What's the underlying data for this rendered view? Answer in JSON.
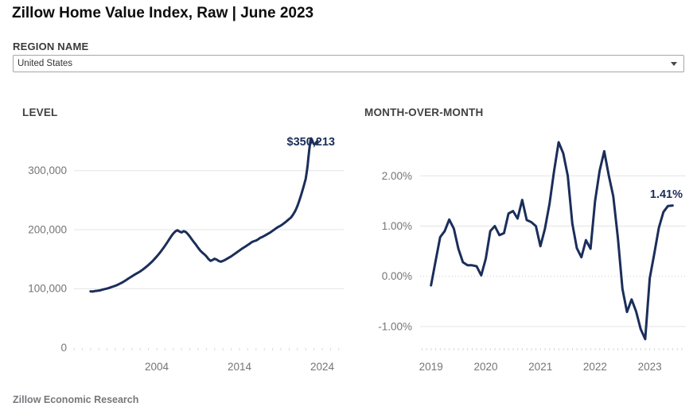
{
  "header": {
    "title": "Zillow Home Value Index, Raw | June 2023"
  },
  "region_filter": {
    "label": "REGION NAME",
    "selected": "United States"
  },
  "footer": {
    "source": "Zillow Economic Research"
  },
  "colors": {
    "line": "#1b2e5a",
    "annotation": "#1b2e5a",
    "grid": "#e4e4e4",
    "axis_text": "#757575",
    "heading_text": "#414141"
  },
  "chart_data": [
    {
      "id": "level",
      "type": "line",
      "title": "LEVEL",
      "annotation": "$350,213",
      "xlabel": "",
      "ylabel": "",
      "legend": "none",
      "grid": "horizontal",
      "xlim": [
        1994.0,
        2026.6
      ],
      "ylim": [
        0,
        379000
      ],
      "tick_step": 1,
      "xticks": [
        {
          "v": 2004,
          "label": "2004"
        },
        {
          "v": 2014,
          "label": "2014"
        },
        {
          "v": 2024,
          "label": "2024"
        }
      ],
      "yticks": [
        {
          "v": 0,
          "label": "0",
          "grid": false
        },
        {
          "v": 100000,
          "label": "100,000",
          "grid": true
        },
        {
          "v": 200000,
          "label": "200,000",
          "grid": true
        },
        {
          "v": 300000,
          "label": "300,000",
          "grid": true
        }
      ],
      "points": [
        [
          1996.0,
          95500
        ],
        [
          1996.25,
          95000
        ],
        [
          1996.5,
          95800
        ],
        [
          1996.75,
          96200
        ],
        [
          1997.0,
          96800
        ],
        [
          1997.25,
          97500
        ],
        [
          1997.5,
          98500
        ],
        [
          1997.75,
          99300
        ],
        [
          1998.0,
          100200
        ],
        [
          1998.25,
          101300
        ],
        [
          1998.5,
          102600
        ],
        [
          1998.75,
          103700
        ],
        [
          1999.0,
          104900
        ],
        [
          1999.25,
          106400
        ],
        [
          1999.5,
          108100
        ],
        [
          1999.75,
          109900
        ],
        [
          2000.0,
          111900
        ],
        [
          2000.25,
          114100
        ],
        [
          2000.5,
          116400
        ],
        [
          2000.75,
          118600
        ],
        [
          2001.0,
          120900
        ],
        [
          2001.25,
          123100
        ],
        [
          2001.5,
          125100
        ],
        [
          2001.75,
          127100
        ],
        [
          2002.0,
          129200
        ],
        [
          2002.25,
          131700
        ],
        [
          2002.5,
          134400
        ],
        [
          2002.75,
          137200
        ],
        [
          2003.0,
          140200
        ],
        [
          2003.25,
          143400
        ],
        [
          2003.5,
          146800
        ],
        [
          2003.75,
          150500
        ],
        [
          2004.0,
          154400
        ],
        [
          2004.25,
          158600
        ],
        [
          2004.5,
          163000
        ],
        [
          2004.75,
          167700
        ],
        [
          2005.0,
          172700
        ],
        [
          2005.25,
          178000
        ],
        [
          2005.5,
          183400
        ],
        [
          2005.75,
          188700
        ],
        [
          2006.0,
          193500
        ],
        [
          2006.25,
          197000
        ],
        [
          2006.5,
          199000
        ],
        [
          2006.75,
          196700
        ],
        [
          2007.0,
          195200
        ],
        [
          2007.25,
          197400
        ],
        [
          2007.5,
          196200
        ],
        [
          2007.75,
          192700
        ],
        [
          2008.0,
          188200
        ],
        [
          2008.25,
          183200
        ],
        [
          2008.5,
          178700
        ],
        [
          2008.75,
          174200
        ],
        [
          2009.0,
          169200
        ],
        [
          2009.25,
          164700
        ],
        [
          2009.5,
          161200
        ],
        [
          2009.75,
          158200
        ],
        [
          2010.0,
          154700
        ],
        [
          2010.25,
          150200
        ],
        [
          2010.5,
          147200
        ],
        [
          2010.75,
          148700
        ],
        [
          2011.0,
          150700
        ],
        [
          2011.25,
          149200
        ],
        [
          2011.5,
          146700
        ],
        [
          2011.75,
          145700
        ],
        [
          2012.0,
          147000
        ],
        [
          2012.25,
          148700
        ],
        [
          2012.5,
          150700
        ],
        [
          2012.75,
          152700
        ],
        [
          2013.0,
          154700
        ],
        [
          2013.25,
          157200
        ],
        [
          2013.5,
          159700
        ],
        [
          2013.75,
          162200
        ],
        [
          2014.0,
          164700
        ],
        [
          2014.25,
          167200
        ],
        [
          2014.5,
          169500
        ],
        [
          2014.75,
          171700
        ],
        [
          2015.0,
          174000
        ],
        [
          2015.25,
          176400
        ],
        [
          2015.5,
          178900
        ],
        [
          2015.75,
          180400
        ],
        [
          2016.0,
          181500
        ],
        [
          2016.25,
          183500
        ],
        [
          2016.5,
          186000
        ],
        [
          2016.75,
          187500
        ],
        [
          2017.0,
          189500
        ],
        [
          2017.25,
          191500
        ],
        [
          2017.5,
          193500
        ],
        [
          2017.75,
          195500
        ],
        [
          2018.0,
          198000
        ],
        [
          2018.25,
          200500
        ],
        [
          2018.5,
          203000
        ],
        [
          2018.75,
          205000
        ],
        [
          2019.0,
          207000
        ],
        [
          2019.25,
          209500
        ],
        [
          2019.5,
          212000
        ],
        [
          2019.75,
          215000
        ],
        [
          2020.0,
          218000
        ],
        [
          2020.25,
          221000
        ],
        [
          2020.5,
          226000
        ],
        [
          2020.75,
          232000
        ],
        [
          2021.0,
          240000
        ],
        [
          2021.25,
          250000
        ],
        [
          2021.5,
          261000
        ],
        [
          2021.75,
          273000
        ],
        [
          2022.0,
          286000
        ],
        [
          2022.083,
          293000
        ],
        [
          2022.167,
          301000
        ],
        [
          2022.25,
          311000
        ],
        [
          2022.333,
          322000
        ],
        [
          2022.417,
          333000
        ],
        [
          2022.5,
          343000
        ],
        [
          2022.583,
          351000
        ],
        [
          2022.667,
          354500
        ],
        [
          2022.75,
          352500
        ],
        [
          2022.833,
          349500
        ],
        [
          2022.917,
          347000
        ],
        [
          2023.0,
          345000
        ],
        [
          2023.083,
          344500
        ],
        [
          2023.167,
          345500
        ],
        [
          2023.25,
          347000
        ],
        [
          2023.333,
          348800
        ],
        [
          2023.417,
          350213
        ]
      ]
    },
    {
      "id": "mom",
      "type": "line",
      "title": "MONTH-OVER-MONTH",
      "annotation": "1.41%",
      "xlabel": "",
      "ylabel": "",
      "legend": "none",
      "grid": "horizontal",
      "xlim": [
        2018.8,
        2023.66
      ],
      "ylim": [
        -1.46,
        2.97
      ],
      "tick_step": 0.08333,
      "xticks": [
        {
          "v": 2019,
          "label": "2019"
        },
        {
          "v": 2020,
          "label": "2020"
        },
        {
          "v": 2021,
          "label": "2021"
        },
        {
          "v": 2022,
          "label": "2022"
        },
        {
          "v": 2023,
          "label": "2023"
        }
      ],
      "yticks": [
        {
          "v": -1,
          "label": "-1.00%",
          "grid": true
        },
        {
          "v": 0,
          "label": "0.00%",
          "grid": "dotted"
        },
        {
          "v": 1,
          "label": "1.00%",
          "grid": true
        },
        {
          "v": 2,
          "label": "2.00%",
          "grid": true
        }
      ],
      "points": [
        [
          2019.0,
          -0.18
        ],
        [
          2019.083,
          0.3
        ],
        [
          2019.167,
          0.78
        ],
        [
          2019.25,
          0.9
        ],
        [
          2019.333,
          1.13
        ],
        [
          2019.417,
          0.95
        ],
        [
          2019.5,
          0.55
        ],
        [
          2019.583,
          0.28
        ],
        [
          2019.667,
          0.22
        ],
        [
          2019.75,
          0.22
        ],
        [
          2019.833,
          0.2
        ],
        [
          2019.917,
          0.02
        ],
        [
          2020.0,
          0.35
        ],
        [
          2020.083,
          0.9
        ],
        [
          2020.167,
          1.0
        ],
        [
          2020.25,
          0.82
        ],
        [
          2020.333,
          0.86
        ],
        [
          2020.417,
          1.25
        ],
        [
          2020.5,
          1.3
        ],
        [
          2020.583,
          1.15
        ],
        [
          2020.667,
          1.52
        ],
        [
          2020.75,
          1.12
        ],
        [
          2020.833,
          1.08
        ],
        [
          2020.917,
          1.0
        ],
        [
          2021.0,
          0.6
        ],
        [
          2021.083,
          0.95
        ],
        [
          2021.167,
          1.45
        ],
        [
          2021.25,
          2.1
        ],
        [
          2021.333,
          2.67
        ],
        [
          2021.417,
          2.45
        ],
        [
          2021.5,
          2.0
        ],
        [
          2021.583,
          1.05
        ],
        [
          2021.667,
          0.56
        ],
        [
          2021.75,
          0.38
        ],
        [
          2021.833,
          0.72
        ],
        [
          2021.917,
          0.55
        ],
        [
          2022.0,
          1.5
        ],
        [
          2022.083,
          2.1
        ],
        [
          2022.167,
          2.49
        ],
        [
          2022.25,
          2.01
        ],
        [
          2022.333,
          1.59
        ],
        [
          2022.417,
          0.76
        ],
        [
          2022.5,
          -0.25
        ],
        [
          2022.583,
          -0.71
        ],
        [
          2022.667,
          -0.46
        ],
        [
          2022.75,
          -0.7
        ],
        [
          2022.833,
          -1.05
        ],
        [
          2022.917,
          -1.25
        ],
        [
          2023.0,
          -0.04
        ],
        [
          2023.083,
          0.45
        ],
        [
          2023.167,
          0.97
        ],
        [
          2023.25,
          1.28
        ],
        [
          2023.333,
          1.4
        ],
        [
          2023.417,
          1.41
        ]
      ]
    }
  ]
}
